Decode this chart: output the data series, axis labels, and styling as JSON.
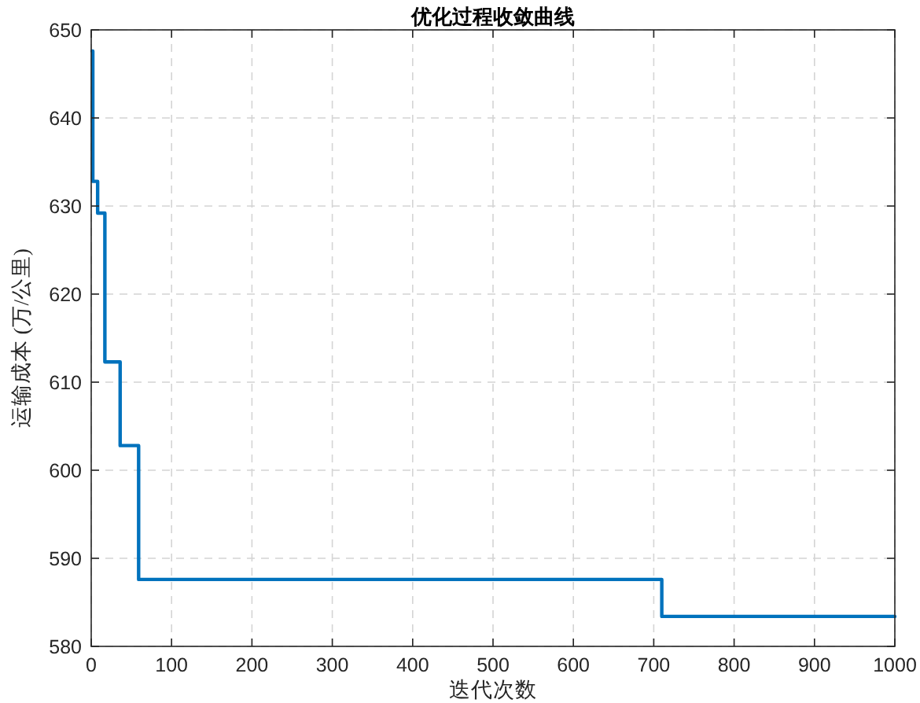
{
  "chart_data": {
    "type": "step",
    "title": "优化过程收敛曲线",
    "xlabel": "迭代次数",
    "ylabel": "运输成本 (万/公里)",
    "x": [
      1,
      2,
      8,
      17,
      36,
      59,
      710,
      1000
    ],
    "series": [
      {
        "color": "#0072bd",
        "values": [
          647.6,
          632.8,
          629.2,
          612.3,
          602.8,
          587.6,
          583.4,
          583.4
        ]
      }
    ],
    "xlim": [
      0,
      1000
    ],
    "ylim": [
      580,
      650
    ],
    "xticks": [
      0,
      100,
      200,
      300,
      400,
      500,
      600,
      700,
      800,
      900,
      1000
    ],
    "yticks": [
      580,
      590,
      600,
      610,
      620,
      630,
      640,
      650
    ],
    "grid": true
  }
}
